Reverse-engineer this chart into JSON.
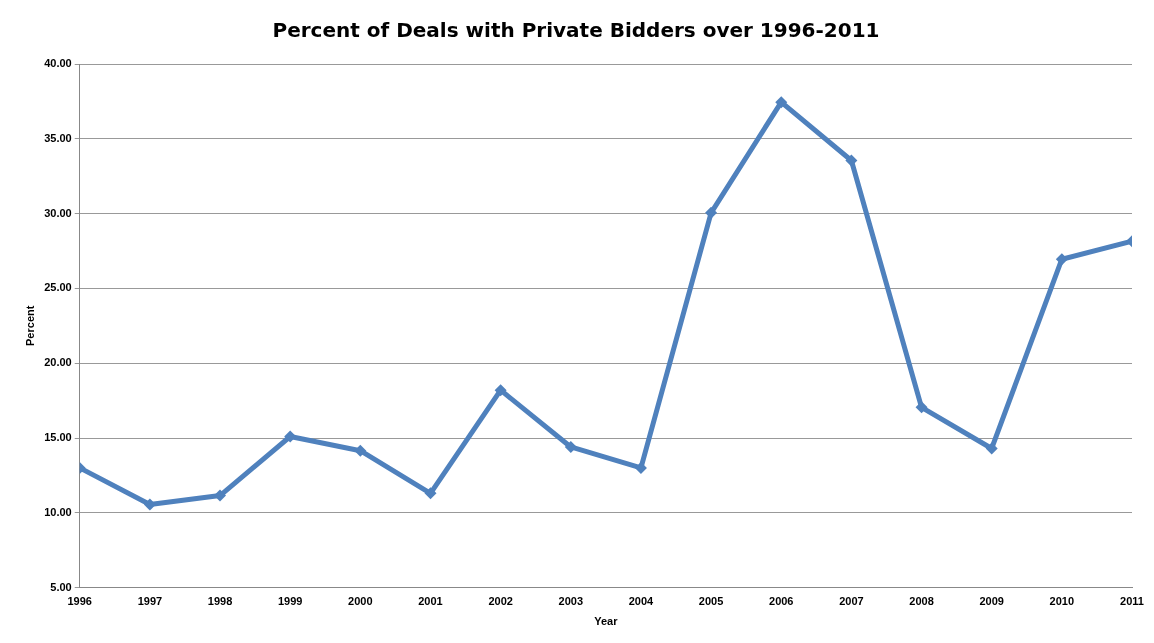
{
  "chart_data": {
    "type": "line",
    "title": "Percent of Deals with Private Bidders over 1996-2011",
    "xlabel": "Year",
    "ylabel": "Percent",
    "x": [
      1996,
      1997,
      1998,
      1999,
      2000,
      2001,
      2002,
      2003,
      2004,
      2005,
      2006,
      2007,
      2008,
      2009,
      2010,
      2011
    ],
    "series": [
      {
        "color": "#4f81bd",
        "values": [
          13.0,
          10.55,
          11.15,
          15.1,
          14.15,
          11.3,
          18.2,
          14.4,
          13.0,
          30.05,
          37.45,
          33.55,
          17.05,
          14.3,
          26.95,
          28.15
        ]
      }
    ],
    "xlim": [
      1996,
      2011
    ],
    "xticks": [
      1996,
      1997,
      1998,
      1999,
      2000,
      2001,
      2002,
      2003,
      2004,
      2005,
      2006,
      2007,
      2008,
      2009,
      2010,
      2011
    ],
    "ylim": [
      5,
      40
    ],
    "yticks": [
      {
        "value": 5,
        "label": "5.00"
      },
      {
        "value": 10,
        "label": "10.00"
      },
      {
        "value": 15,
        "label": "15.00"
      },
      {
        "value": 20,
        "label": "20.00"
      },
      {
        "value": 25,
        "label": "25.00"
      },
      {
        "value": 30,
        "label": "30.00"
      },
      {
        "value": 35,
        "label": "35.00"
      },
      {
        "value": 40,
        "label": "40.00"
      }
    ],
    "grid": "y",
    "legend": false,
    "marker": "diamond",
    "line_style": "solid"
  }
}
